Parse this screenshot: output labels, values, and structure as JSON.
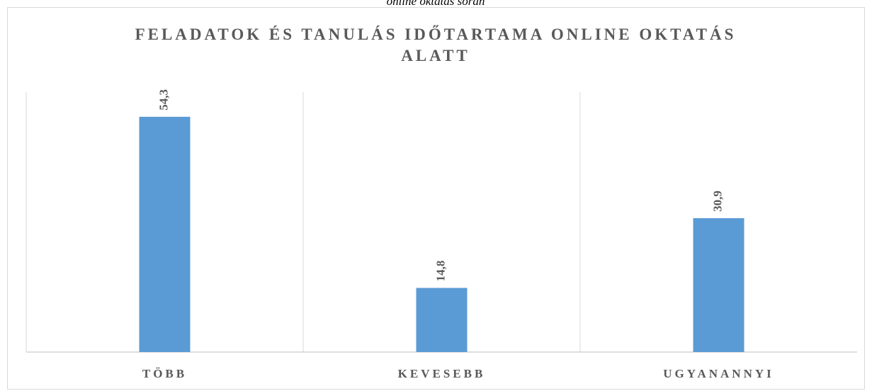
{
  "caption": "online oktatás során",
  "chart_data": {
    "type": "bar",
    "title": "FELADATOK ÉS TANULÁS IDŐTARTAMA ONLINE OKTATÁS ALATT",
    "categories": [
      "TÖBB",
      "KEVESEBB",
      "UGYANANNYI"
    ],
    "values": [
      54.3,
      14.8,
      30.9
    ],
    "value_labels": [
      "54,3",
      "14,8",
      "30,9"
    ],
    "color": "#5b9bd5",
    "ylim": [
      0,
      60
    ]
  }
}
